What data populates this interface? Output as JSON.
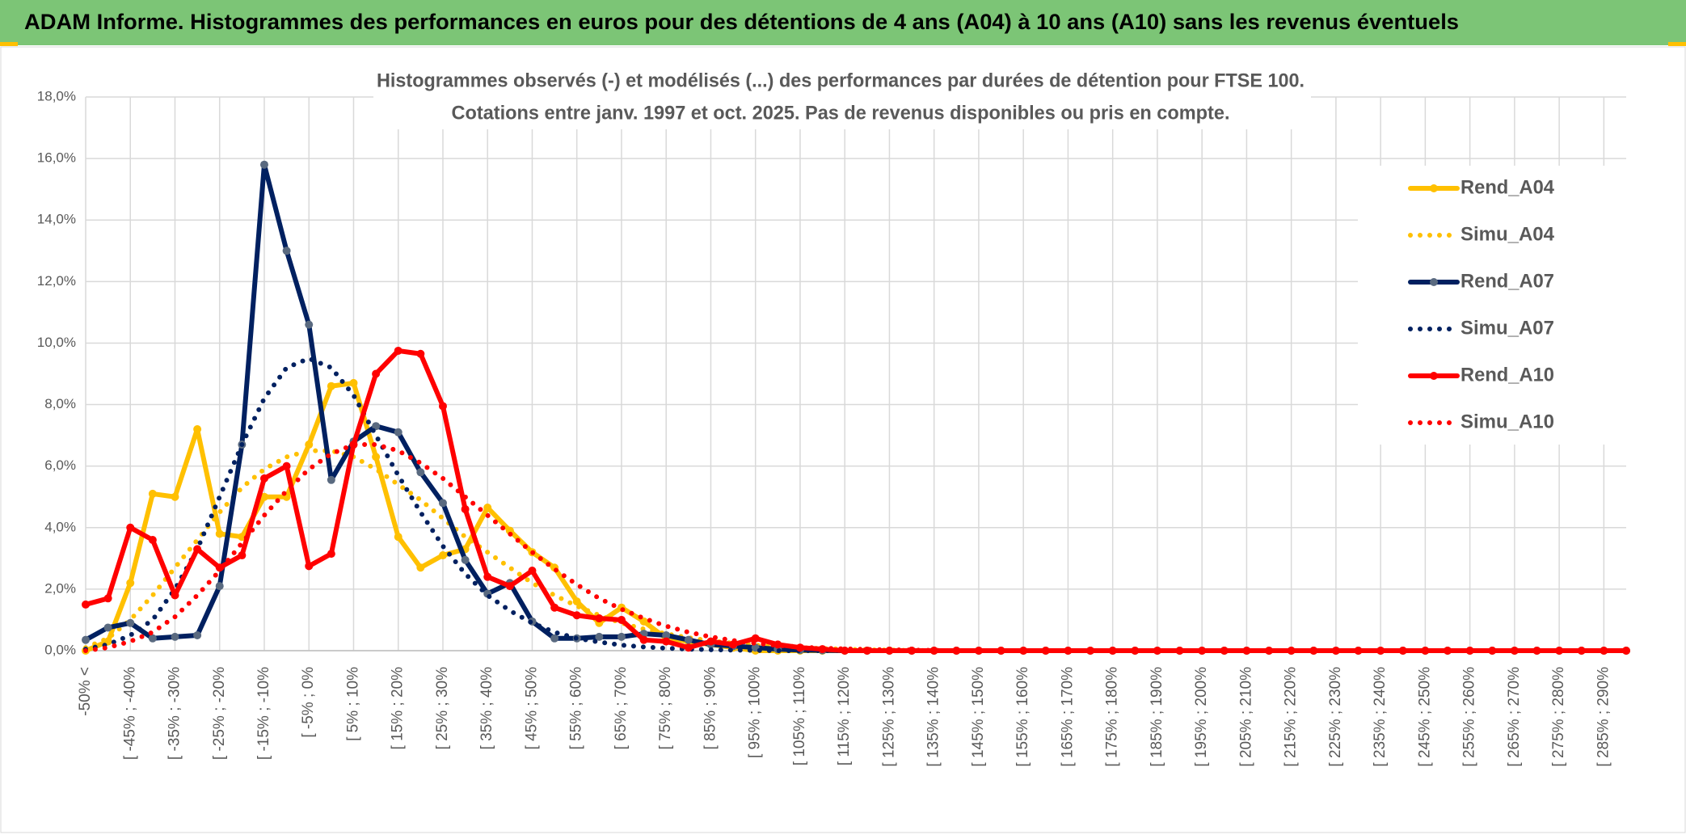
{
  "header": {
    "title": "ADAM Informe. Histogrammes des performances en euros pour des détentions de 4 ans (A04) à 10 ans (A10) sans les revenus éventuels"
  },
  "chart_data": {
    "type": "line",
    "title": "Histogrammes observés (-) et modélisés (...) des performances par durées de détention pour FTSE 100.",
    "subtitle": "Cotations entre janv. 1997 et oct. 2025. Pas de revenus disponibles ou pris en compte.",
    "categories": [
      "-50% <",
      null,
      "[ -45% ; -40%",
      null,
      "[ -35% ; -30%",
      null,
      "[ -25% ; -20%",
      null,
      "[ -15% ; -10%",
      null,
      "[ -5% ; 0%",
      null,
      "[ 5% ; 10%",
      null,
      "[ 15% ; 20%",
      null,
      "[ 25% ; 30%",
      null,
      "[ 35% ; 40%",
      null,
      "[ 45% ; 50%",
      null,
      "[ 55% ; 60%",
      null,
      "[ 65% ; 70%",
      null,
      "[ 75% ; 80%",
      null,
      "[ 85% ; 90%",
      null,
      "[ 95% ; 100%",
      null,
      "[ 105% ; 110%",
      null,
      "[ 115% ; 120%",
      null,
      "[ 125% ; 130%",
      null,
      "[ 135% ; 140%",
      null,
      "[ 145% ; 150%",
      null,
      "[ 155% ; 160%",
      null,
      "[ 165% ; 170%",
      null,
      "[ 175% ; 180%",
      null,
      "[ 185% ; 190%",
      null,
      "[ 195% ; 200%",
      null,
      "[ 205% ; 210%",
      null,
      "[ 215% ; 220%",
      null,
      "[ 225% ; 230%",
      null,
      "[ 235% ; 240%",
      null,
      "[ 245% ; 250%",
      null,
      "[ 255% ; 260%",
      null,
      "[ 265% ; 270%",
      null,
      "[ 275% ; 280%",
      null,
      "[ 285% ; 290%",
      null
    ],
    "series": [
      {
        "name": "Rend_A04",
        "color": "#FFC000",
        "marker_color": "#FFC000",
        "style": "solid",
        "markers": true,
        "values": [
          0.0,
          0.3,
          2.2,
          5.1,
          5.0,
          7.2,
          3.8,
          3.7,
          5.0,
          5.0,
          6.7,
          8.6,
          8.7,
          6.3,
          3.7,
          2.7,
          3.1,
          3.3,
          4.65,
          3.9,
          3.2,
          2.7,
          1.6,
          0.9,
          1.4,
          0.95,
          0.4,
          0.3,
          0.2,
          0.1,
          0.0,
          0,
          0,
          0,
          0,
          0,
          0,
          0,
          0,
          0,
          0,
          0,
          0,
          0,
          0,
          0,
          0,
          0,
          0,
          0,
          0,
          0,
          0,
          0,
          0,
          0,
          0,
          0,
          0,
          0,
          0,
          0,
          0,
          0,
          0,
          0,
          0,
          0,
          0,
          0
        ]
      },
      {
        "name": "Simu_A04",
        "color": "#FFC000",
        "style": "dotted",
        "markers": false,
        "values": [
          0.1,
          0.4,
          1.0,
          1.8,
          2.7,
          3.6,
          4.5,
          5.3,
          5.9,
          6.3,
          6.5,
          6.5,
          6.3,
          5.9,
          5.4,
          4.9,
          4.3,
          3.7,
          3.2,
          2.7,
          2.2,
          1.8,
          1.45,
          1.15,
          0.9,
          0.7,
          0.55,
          0.42,
          0.32,
          0.24,
          0.18,
          0.13,
          0.1,
          0.07,
          0.05,
          0.03,
          0.02,
          0.01,
          0,
          0,
          0,
          0,
          0,
          0,
          0,
          0,
          0,
          0,
          0,
          0,
          0,
          0,
          0,
          0,
          0,
          0,
          0,
          0,
          0,
          0,
          0,
          0,
          0,
          0,
          0,
          0,
          0,
          0,
          0,
          0
        ]
      },
      {
        "name": "Rend_A07",
        "color": "#002060",
        "marker_color": "#5A6A80",
        "style": "solid",
        "markers": true,
        "values": [
          0.35,
          0.75,
          0.9,
          0.4,
          0.45,
          0.5,
          2.1,
          6.7,
          15.8,
          13.0,
          10.6,
          5.55,
          6.8,
          7.3,
          7.1,
          5.8,
          4.8,
          2.95,
          1.85,
          2.2,
          0.95,
          0.4,
          0.4,
          0.45,
          0.45,
          0.55,
          0.5,
          0.35,
          0.2,
          0.15,
          0.1,
          0.05,
          0.02,
          0.01,
          0,
          0,
          0,
          0,
          0,
          0,
          0,
          0,
          0,
          0,
          0,
          0,
          0,
          0,
          0,
          0,
          0,
          0,
          0,
          0,
          0,
          0,
          0,
          0,
          0,
          0,
          0,
          0,
          0,
          0,
          0,
          0,
          0,
          0,
          0,
          0
        ]
      },
      {
        "name": "Simu_A07",
        "color": "#002060",
        "style": "dotted",
        "markers": false,
        "values": [
          0.05,
          0.2,
          0.5,
          1.0,
          2.0,
          3.3,
          5.0,
          6.7,
          8.2,
          9.2,
          9.5,
          9.2,
          8.3,
          7.0,
          5.7,
          4.5,
          3.4,
          2.5,
          1.8,
          1.3,
          0.9,
          0.6,
          0.4,
          0.28,
          0.18,
          0.12,
          0.08,
          0.05,
          0.03,
          0.02,
          0.01,
          0,
          0,
          0,
          0,
          0,
          0,
          0,
          0,
          0,
          0,
          0,
          0,
          0,
          0,
          0,
          0,
          0,
          0,
          0,
          0,
          0,
          0,
          0,
          0,
          0,
          0,
          0,
          0,
          0,
          0,
          0,
          0,
          0,
          0,
          0,
          0,
          0,
          0,
          0
        ]
      },
      {
        "name": "Rend_A10",
        "color": "#FF0000",
        "marker_color": "#FF0000",
        "style": "solid",
        "markers": true,
        "values": [
          1.5,
          1.7,
          4.0,
          3.6,
          1.8,
          3.3,
          2.7,
          3.1,
          5.6,
          6.0,
          2.75,
          3.15,
          6.7,
          9.0,
          9.75,
          9.65,
          7.95,
          4.6,
          2.4,
          2.1,
          2.6,
          1.4,
          1.15,
          1.05,
          1.0,
          0.35,
          0.3,
          0.1,
          0.3,
          0.2,
          0.4,
          0.2,
          0.1,
          0.05,
          0,
          0,
          0,
          0,
          0,
          0,
          0,
          0,
          0,
          0,
          0,
          0,
          0,
          0,
          0,
          0,
          0,
          0,
          0,
          0,
          0,
          0,
          0,
          0,
          0,
          0,
          0,
          0,
          0,
          0,
          0,
          0,
          0,
          0,
          0,
          0
        ]
      },
      {
        "name": "Simu_A10",
        "color": "#FF0000",
        "style": "dotted",
        "markers": false,
        "values": [
          0.0,
          0.1,
          0.3,
          0.6,
          1.1,
          1.8,
          2.6,
          3.5,
          4.4,
          5.2,
          5.9,
          6.4,
          6.7,
          6.7,
          6.5,
          6.1,
          5.6,
          5.0,
          4.4,
          3.8,
          3.2,
          2.65,
          2.15,
          1.7,
          1.35,
          1.05,
          0.8,
          0.6,
          0.45,
          0.33,
          0.24,
          0.17,
          0.12,
          0.08,
          0.06,
          0.04,
          0.03,
          0.02,
          0.01,
          0,
          0,
          0,
          0,
          0,
          0,
          0,
          0,
          0,
          0,
          0,
          0,
          0,
          0,
          0,
          0,
          0,
          0,
          0,
          0,
          0,
          0,
          0,
          0,
          0,
          0,
          0,
          0,
          0,
          0,
          0
        ]
      }
    ],
    "ylim": [
      0,
      18
    ],
    "yticks": [
      {
        "value": 0,
        "label": "0,0%"
      },
      {
        "value": 2,
        "label": "2,0%"
      },
      {
        "value": 4,
        "label": "4,0%"
      },
      {
        "value": 6,
        "label": "6,0%"
      },
      {
        "value": 8,
        "label": "8,0%"
      },
      {
        "value": 10,
        "label": "10,0%"
      },
      {
        "value": 12,
        "label": "12,0%"
      },
      {
        "value": 14,
        "label": "14,0%"
      },
      {
        "value": 16,
        "label": "16,0%"
      },
      {
        "value": 18,
        "label": "18,0%"
      }
    ],
    "grid": true,
    "legend": "right"
  }
}
